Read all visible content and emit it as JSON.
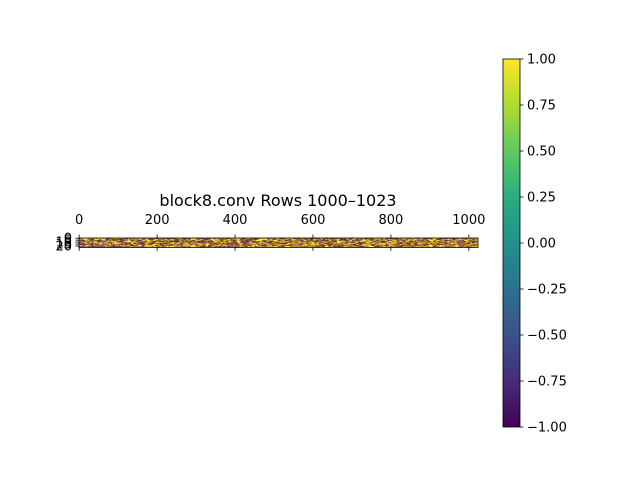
{
  "chart_data": {
    "type": "heatmap",
    "title": "block8.conv Rows 1000–1023",
    "xlabel": "",
    "ylabel": "",
    "n_rows": 24,
    "n_cols": 1024,
    "x_ticks": [
      0,
      200,
      400,
      600,
      800,
      1000
    ],
    "x_tick_labels": [
      "0",
      "200",
      "400",
      "600",
      "800",
      "1000"
    ],
    "y_ticks": [
      0,
      5,
      10,
      15,
      20
    ],
    "y_tick_labels": [
      "0",
      "5",
      "10",
      "15",
      "20"
    ],
    "value_range": [
      -1.0,
      1.0
    ],
    "values_description_levels": [
      -1,
      1
    ],
    "colormap": "viridis",
    "colorbar": {
      "ticks": [
        1.0,
        0.75,
        0.5,
        0.25,
        0.0,
        -0.25,
        -0.5,
        -0.75,
        -1.0
      ],
      "tick_labels": [
        "1.00",
        "0.75",
        "0.50",
        "0.25",
        "0.00",
        "−0.25",
        "−0.50",
        "−0.75",
        "−1.00"
      ]
    },
    "grid": false,
    "colors": {
      "low": "#440154",
      "high": "#fde725"
    }
  }
}
